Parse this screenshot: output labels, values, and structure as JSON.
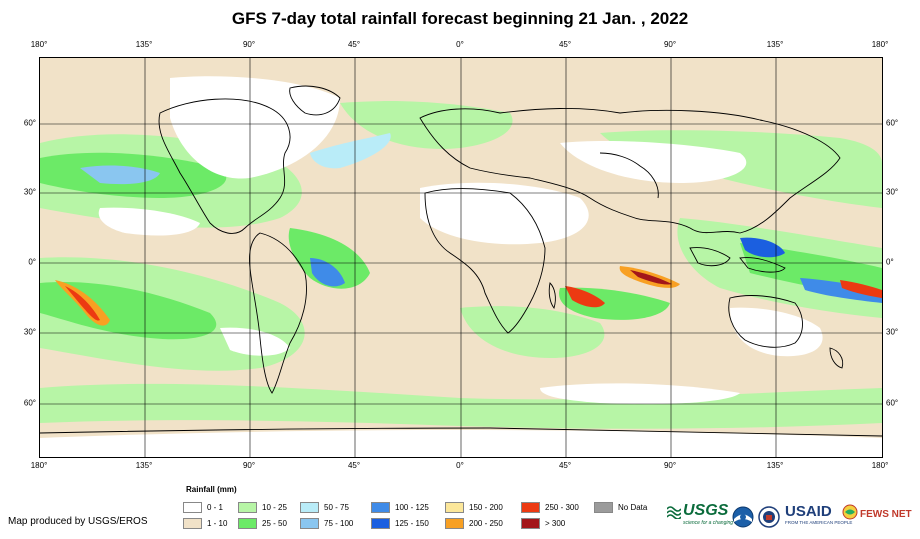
{
  "title": "GFS 7-day total rainfall forecast beginning 21 Jan. , 2022",
  "longitude_ticks": [
    "180°",
    "135°",
    "90°",
    "45°",
    "0°",
    "45°",
    "90°",
    "135°",
    "180°"
  ],
  "latitude_ticks": [
    "60°",
    "30°",
    "0°",
    "30°",
    "60°"
  ],
  "legend": {
    "title": "Rainfall (mm)",
    "items": [
      {
        "label": "0 - 1",
        "color": "#ffffff"
      },
      {
        "label": "1 - 10",
        "color": "#f1e2c8"
      },
      {
        "label": "10 - 25",
        "color": "#b7f5a6"
      },
      {
        "label": "25 - 50",
        "color": "#6cea67"
      },
      {
        "label": "50 - 75",
        "color": "#b9ecf8"
      },
      {
        "label": "75 - 100",
        "color": "#8ac6f0"
      },
      {
        "label": "100 - 125",
        "color": "#3f8be8"
      },
      {
        "label": "125 - 150",
        "color": "#1b5fe0"
      },
      {
        "label": "150 - 200",
        "color": "#fce79a"
      },
      {
        "label": "200 - 250",
        "color": "#f8a023"
      },
      {
        "label": "250 - 300",
        "color": "#ec3a12"
      },
      {
        "label": "> 300",
        "color": "#a3161a"
      },
      {
        "label": "No Data",
        "color": "#9b9b9b"
      }
    ]
  },
  "credit": "Map produced by USGS/EROS",
  "logos": {
    "usgs": "USGS",
    "usgs_tagline": "science for a changing world",
    "usaid": "USAID",
    "usaid_tagline": "FROM THE AMERICAN PEOPLE",
    "fews": "FEWS NET"
  }
}
